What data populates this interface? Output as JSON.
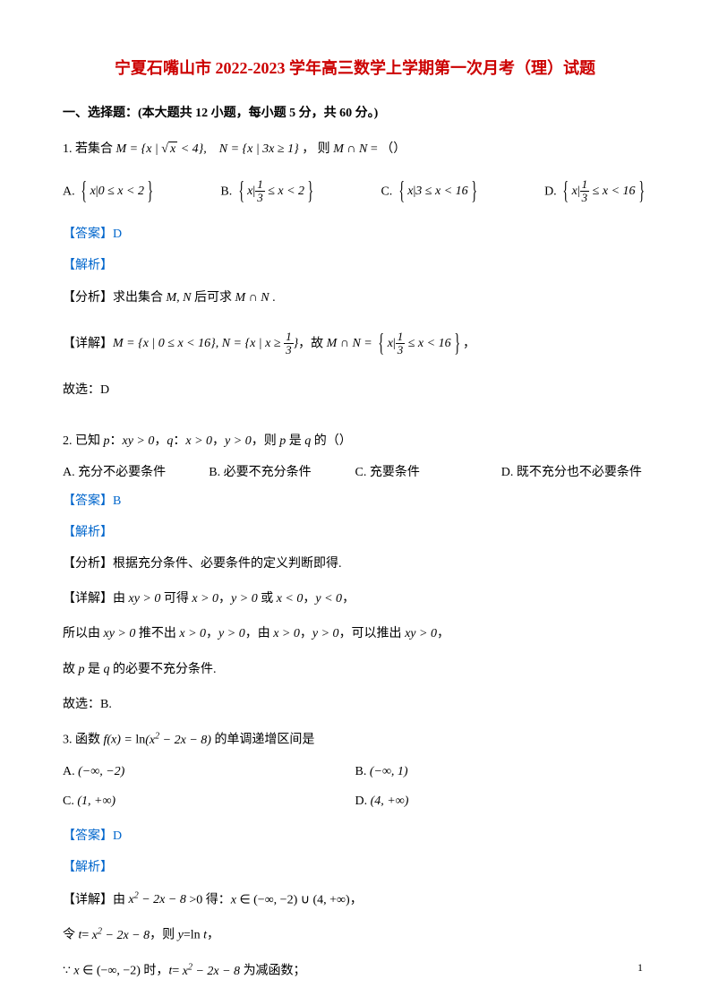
{
  "title": "宁夏石嘴山市 2022-2023 学年高三数学上学期第一次月考（理）试题",
  "section1": "一、选择题：(本大题共 12 小题，每小题 5 分，共 60 分。)",
  "q1": {
    "stem_prefix": "1. 若集合 ",
    "stem_math": "M = {x | √x < 4},　N = {x | 3x ≥ 1}，",
    "stem_suffix": " 则 M ∩ N = （）",
    "optA_label": "A. ",
    "optA": "{x | 0 ≤ x < 2}",
    "optB_label": "B. ",
    "optB": "{x | 1/3 ≤ x < 2}",
    "optC_label": "C. ",
    "optC": "{x | 3 ≤ x < 16}",
    "optD_label": "D. ",
    "optD": "{x | 1/3 ≤ x < 16}",
    "answer": "【答案】D",
    "jiexi": "【解析】",
    "fenxi": "【分析】求出集合 M, N 后可求 M ∩ N .",
    "xiangjie_prefix": "【详解】",
    "xiangjie": "M = {x | 0 ≤ x < 16}, N = {x | x ≥ 1/3}，故 M ∩ N = {x | 1/3 ≤ x < 16}，",
    "guxuan": "故选：D"
  },
  "q2": {
    "stem": "2. 已知 p：xy > 0，q：x > 0，y > 0，则 p 是 q 的（）",
    "optA": "A. 充分不必要条件",
    "optB": "B. 必要不充分条件",
    "optC": "C. 充要条件",
    "optD": "D. 既不充分也不必要条件",
    "answer": "【答案】B",
    "jiexi": "【解析】",
    "fenxi": "【分析】根据充分条件、必要条件的定义判断即得.",
    "xiangjie1": "【详解】由 xy > 0 可得 x > 0，y > 0 或 x < 0，y < 0，",
    "xiangjie2": "所以由 xy > 0 推不出 x > 0，y > 0，由 x > 0，y > 0，可以推出 xy > 0，",
    "xiangjie3": "故 p 是 q 的必要不充分条件.",
    "guxuan": "故选：B."
  },
  "q3": {
    "stem": "3. 函数 f(x) = ln(x² − 2x − 8) 的单调递增区间是",
    "optA": "A. (−∞, −2)",
    "optB": "B. (−∞, 1)",
    "optC": "C. (1, +∞)",
    "optD": "D. (4, +∞)",
    "answer": "【答案】D",
    "jiexi": "【解析】",
    "xiangjie1": "【详解】由 x² − 2x − 8 >0 得：x ∈ (−∞, −2) ∪ (4, +∞)，",
    "xiangjie2": "令 t= x² − 2x − 8，则 y=ln t，",
    "xiangjie3": "∵ x ∈ (−∞, −2) 时，t= x² − 2x − 8 为减函数；"
  },
  "pagenum": "1",
  "colors": {
    "title": "#cc0000",
    "answer": "#0066cc",
    "text": "#000000",
    "background": "#ffffff"
  }
}
